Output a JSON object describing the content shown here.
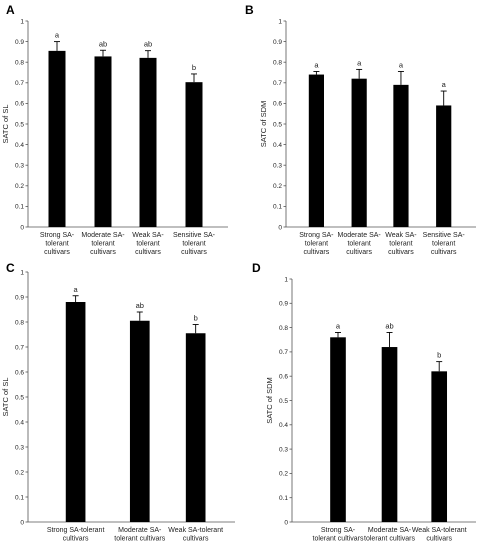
{
  "chart_data": [
    {
      "panel": "A",
      "type": "bar",
      "title": "",
      "xlabel": "",
      "ylabel": "SATC of SL",
      "ylim": [
        0,
        1
      ],
      "yticks": [
        "0",
        "0.1",
        "0.2",
        "0.3",
        "0.4",
        "0.5",
        "0.6",
        "0.7",
        "0.8",
        "0.9",
        "1"
      ],
      "categories": [
        [
          "Strong SA-",
          "tolerant",
          "cultivars"
        ],
        [
          "Moderate SA-",
          "tolerant",
          "cultivars"
        ],
        [
          "Weak SA-",
          "tolerant",
          "cultivars"
        ],
        [
          "Sensitive SA-",
          "tolerant",
          "cultivars"
        ]
      ],
      "values": [
        0.855,
        0.828,
        0.821,
        0.703
      ],
      "errors": [
        0.045,
        0.03,
        0.035,
        0.04
      ],
      "significance": [
        "a",
        "ab",
        "ab",
        "b"
      ],
      "bar_color": "#000000"
    },
    {
      "panel": "B",
      "type": "bar",
      "title": "",
      "xlabel": "",
      "ylabel": "SATC of SDM",
      "ylim": [
        0,
        1
      ],
      "yticks": [
        "0",
        "0.1",
        "0.2",
        "0.3",
        "0.4",
        "0.5",
        "0.6",
        "0.7",
        "0.8",
        "0.9",
        "1"
      ],
      "categories": [
        [
          "Strong SA-",
          "tolerant",
          "cultivars"
        ],
        [
          "Moderate SA-",
          "tolerant",
          "cultivars"
        ],
        [
          "Weak SA-",
          "tolerant",
          "cultivars"
        ],
        [
          "Sensitive SA-",
          "tolerant",
          "cultivars"
        ]
      ],
      "values": [
        0.74,
        0.72,
        0.69,
        0.59
      ],
      "errors": [
        0.015,
        0.045,
        0.065,
        0.07
      ],
      "significance": [
        "a",
        "a",
        "a",
        "a"
      ],
      "bar_color": "#000000"
    },
    {
      "panel": "C",
      "type": "bar",
      "title": "",
      "xlabel": "",
      "ylabel": "SATC of SL",
      "ylim": [
        0,
        1
      ],
      "yticks": [
        "0",
        "0.1",
        "0.2",
        "0.3",
        "0.4",
        "0.5",
        "0.6",
        "0.7",
        "0.8",
        "0.9",
        "1"
      ],
      "categories": [
        [
          "Strong SA-tolerant",
          "cultivars"
        ],
        [
          "Moderate SA-",
          "tolerant cultivars"
        ],
        [
          "Weak SA-tolerant",
          "cultivars"
        ]
      ],
      "values": [
        0.88,
        0.805,
        0.755
      ],
      "errors": [
        0.025,
        0.035,
        0.035
      ],
      "significance": [
        "a",
        "ab",
        "b"
      ],
      "bar_color": "#000000"
    },
    {
      "panel": "D",
      "type": "bar",
      "title": "",
      "xlabel": "",
      "ylabel": "SATC of SDM",
      "ylim": [
        0,
        1
      ],
      "yticks": [
        "0",
        "0.1",
        "0.2",
        "0.3",
        "0.4",
        "0.5",
        "0.6",
        "0.7",
        "0.8",
        "0.9",
        "1"
      ],
      "categories": [
        [
          "Strong SA-",
          "tolerant cultivars"
        ],
        [
          "Moderate SA-",
          "tolerant cultivars"
        ],
        [
          "Weak SA-tolerant",
          "cultivars"
        ]
      ],
      "values": [
        0.76,
        0.72,
        0.62
      ],
      "errors": [
        0.02,
        0.06,
        0.04
      ],
      "significance": [
        "a",
        "ab",
        "b"
      ],
      "bar_color": "#000000"
    }
  ]
}
